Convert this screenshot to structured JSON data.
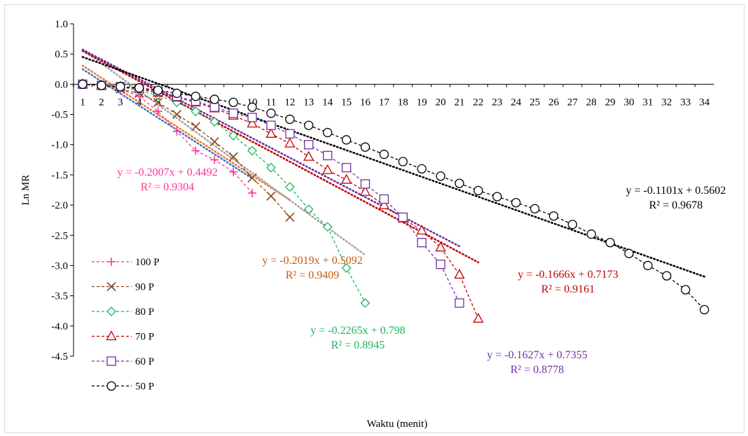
{
  "chart_data": {
    "type": "line",
    "title": "",
    "xlabel": "Waktu (menit)",
    "ylabel": "Ln MR",
    "ylim": [
      -4.5,
      1.0
    ],
    "yticks": [
      "1.0",
      "0.5",
      "0.0",
      "-0.5",
      "-1.0",
      "-1.5",
      "-2.0",
      "-2.5",
      "-3.0",
      "-3.5",
      "-4.0",
      "-4.5"
    ],
    "xticks": [
      "1",
      "2",
      "3",
      "4",
      "5",
      "6",
      "7",
      "8",
      "9",
      "10",
      "11",
      "12",
      "13",
      "14",
      "15",
      "16",
      "17",
      "18",
      "19",
      "20",
      "21",
      "22",
      "23",
      "24",
      "25",
      "26",
      "27",
      "28",
      "29",
      "30",
      "31",
      "32",
      "33",
      "34"
    ],
    "grid": false,
    "legend_position": "bottom-left",
    "series": [
      {
        "name": "100 P",
        "color": "#ff3399",
        "marker": "plus",
        "x": [
          1,
          2,
          3,
          4,
          5,
          6,
          7,
          8,
          9,
          10
        ],
        "y": [
          0.0,
          -0.02,
          -0.08,
          -0.2,
          -0.45,
          -0.78,
          -1.1,
          -1.25,
          -1.45,
          -1.8
        ],
        "trend": {
          "slope": -0.2007,
          "intercept": 0.4492,
          "x_range": [
            1,
            10
          ],
          "color": "#4472c4"
        }
      },
      {
        "name": "90 P",
        "color": "#8b4513",
        "marker": "x",
        "x": [
          1,
          2,
          3,
          4,
          5,
          6,
          7,
          8,
          9,
          10,
          11,
          12
        ],
        "y": [
          0.0,
          -0.02,
          -0.08,
          -0.15,
          -0.3,
          -0.5,
          -0.7,
          -0.95,
          -1.2,
          -1.55,
          -1.85,
          -2.2
        ],
        "trend": {
          "slope": -0.2019,
          "intercept": 0.5092,
          "x_range": [
            1,
            12
          ],
          "color": "#ed7d31"
        }
      },
      {
        "name": "80 P",
        "color": "#1fb35a",
        "marker": "diamond",
        "x": [
          1,
          2,
          3,
          4,
          5,
          6,
          7,
          8,
          9,
          10,
          11,
          12,
          13,
          14,
          15,
          16
        ],
        "y": [
          0.0,
          -0.02,
          -0.05,
          -0.1,
          -0.18,
          -0.3,
          -0.45,
          -0.62,
          -0.85,
          -1.1,
          -1.38,
          -1.7,
          -2.07,
          -2.36,
          -3.04,
          -3.62
        ],
        "trend": {
          "slope": -0.2265,
          "intercept": 0.798,
          "x_range": [
            1,
            16
          ],
          "color": "#a5a5a5"
        }
      },
      {
        "name": "70 P",
        "color": "#c00000",
        "marker": "triangle",
        "x": [
          1,
          2,
          3,
          4,
          5,
          6,
          7,
          8,
          9,
          10,
          11,
          12,
          13,
          14,
          15,
          16,
          17,
          18,
          19,
          20,
          21,
          22
        ],
        "y": [
          0.0,
          -0.02,
          -0.04,
          -0.08,
          -0.14,
          -0.22,
          -0.3,
          -0.4,
          -0.52,
          -0.65,
          -0.82,
          -0.98,
          -1.2,
          -1.42,
          -1.58,
          -1.78,
          -2.0,
          -2.22,
          -2.42,
          -2.7,
          -3.15,
          -3.88
        ],
        "trend": {
          "slope": -0.1666,
          "intercept": 0.7173,
          "x_range": [
            1,
            22
          ],
          "color": "#c00000"
        }
      },
      {
        "name": "60 P",
        "color": "#7030a0",
        "marker": "square",
        "x": [
          1,
          2,
          3,
          4,
          5,
          6,
          7,
          8,
          9,
          10,
          11,
          12,
          13,
          14,
          15,
          16,
          17,
          18,
          19,
          20,
          21
        ],
        "y": [
          0.0,
          -0.02,
          -0.04,
          -0.07,
          -0.12,
          -0.2,
          -0.28,
          -0.38,
          -0.48,
          -0.55,
          -0.68,
          -0.82,
          -1.0,
          -1.18,
          -1.38,
          -1.65,
          -1.9,
          -2.2,
          -2.62,
          -2.98,
          -3.62
        ],
        "trend": {
          "slope": -0.1627,
          "intercept": 0.7355,
          "x_range": [
            1,
            21
          ],
          "color": "#7030a0"
        }
      },
      {
        "name": "50 P",
        "color": "#000000",
        "marker": "circle",
        "x": [
          1,
          2,
          3,
          4,
          5,
          6,
          7,
          8,
          9,
          10,
          11,
          12,
          13,
          14,
          15,
          16,
          17,
          18,
          19,
          20,
          21,
          22,
          23,
          24,
          25,
          26,
          27,
          28,
          29,
          30,
          31,
          32,
          33,
          34
        ],
        "y": [
          0.0,
          -0.02,
          -0.04,
          -0.06,
          -0.1,
          -0.15,
          -0.2,
          -0.25,
          -0.3,
          -0.38,
          -0.48,
          -0.58,
          -0.68,
          -0.8,
          -0.92,
          -1.04,
          -1.16,
          -1.28,
          -1.4,
          -1.52,
          -1.64,
          -1.76,
          -1.86,
          -1.96,
          -2.06,
          -2.18,
          -2.32,
          -2.48,
          -2.62,
          -2.8,
          -3.0,
          -3.17,
          -3.4,
          -3.73
        ],
        "trend": {
          "slope": -0.1101,
          "intercept": 0.5602,
          "x_range": [
            1,
            34
          ],
          "color": "#000000"
        }
      }
    ],
    "annotations": [
      {
        "eq": "y = -0.2007x + 0.4492",
        "r2": "R² = 0.9304",
        "color": "#ff3399"
      },
      {
        "eq": "y = -0.2019x + 0.5092",
        "r2": "R² = 0.9409",
        "color": "#c55a11"
      },
      {
        "eq": "y = -0.2265x + 0.798",
        "r2": "R² = 0.8945",
        "color": "#1fb35a"
      },
      {
        "eq": "y = -0.1666x + 0.7173",
        "r2": "R² = 0.9161",
        "color": "#c00000"
      },
      {
        "eq": "y = -0.1627x + 0.7355",
        "r2": "R² = 0.8778",
        "color": "#7030a0"
      },
      {
        "eq": "y = -0.1101x + 0.5602",
        "r2": "R² = 0.9678",
        "color": "#000000"
      }
    ]
  }
}
